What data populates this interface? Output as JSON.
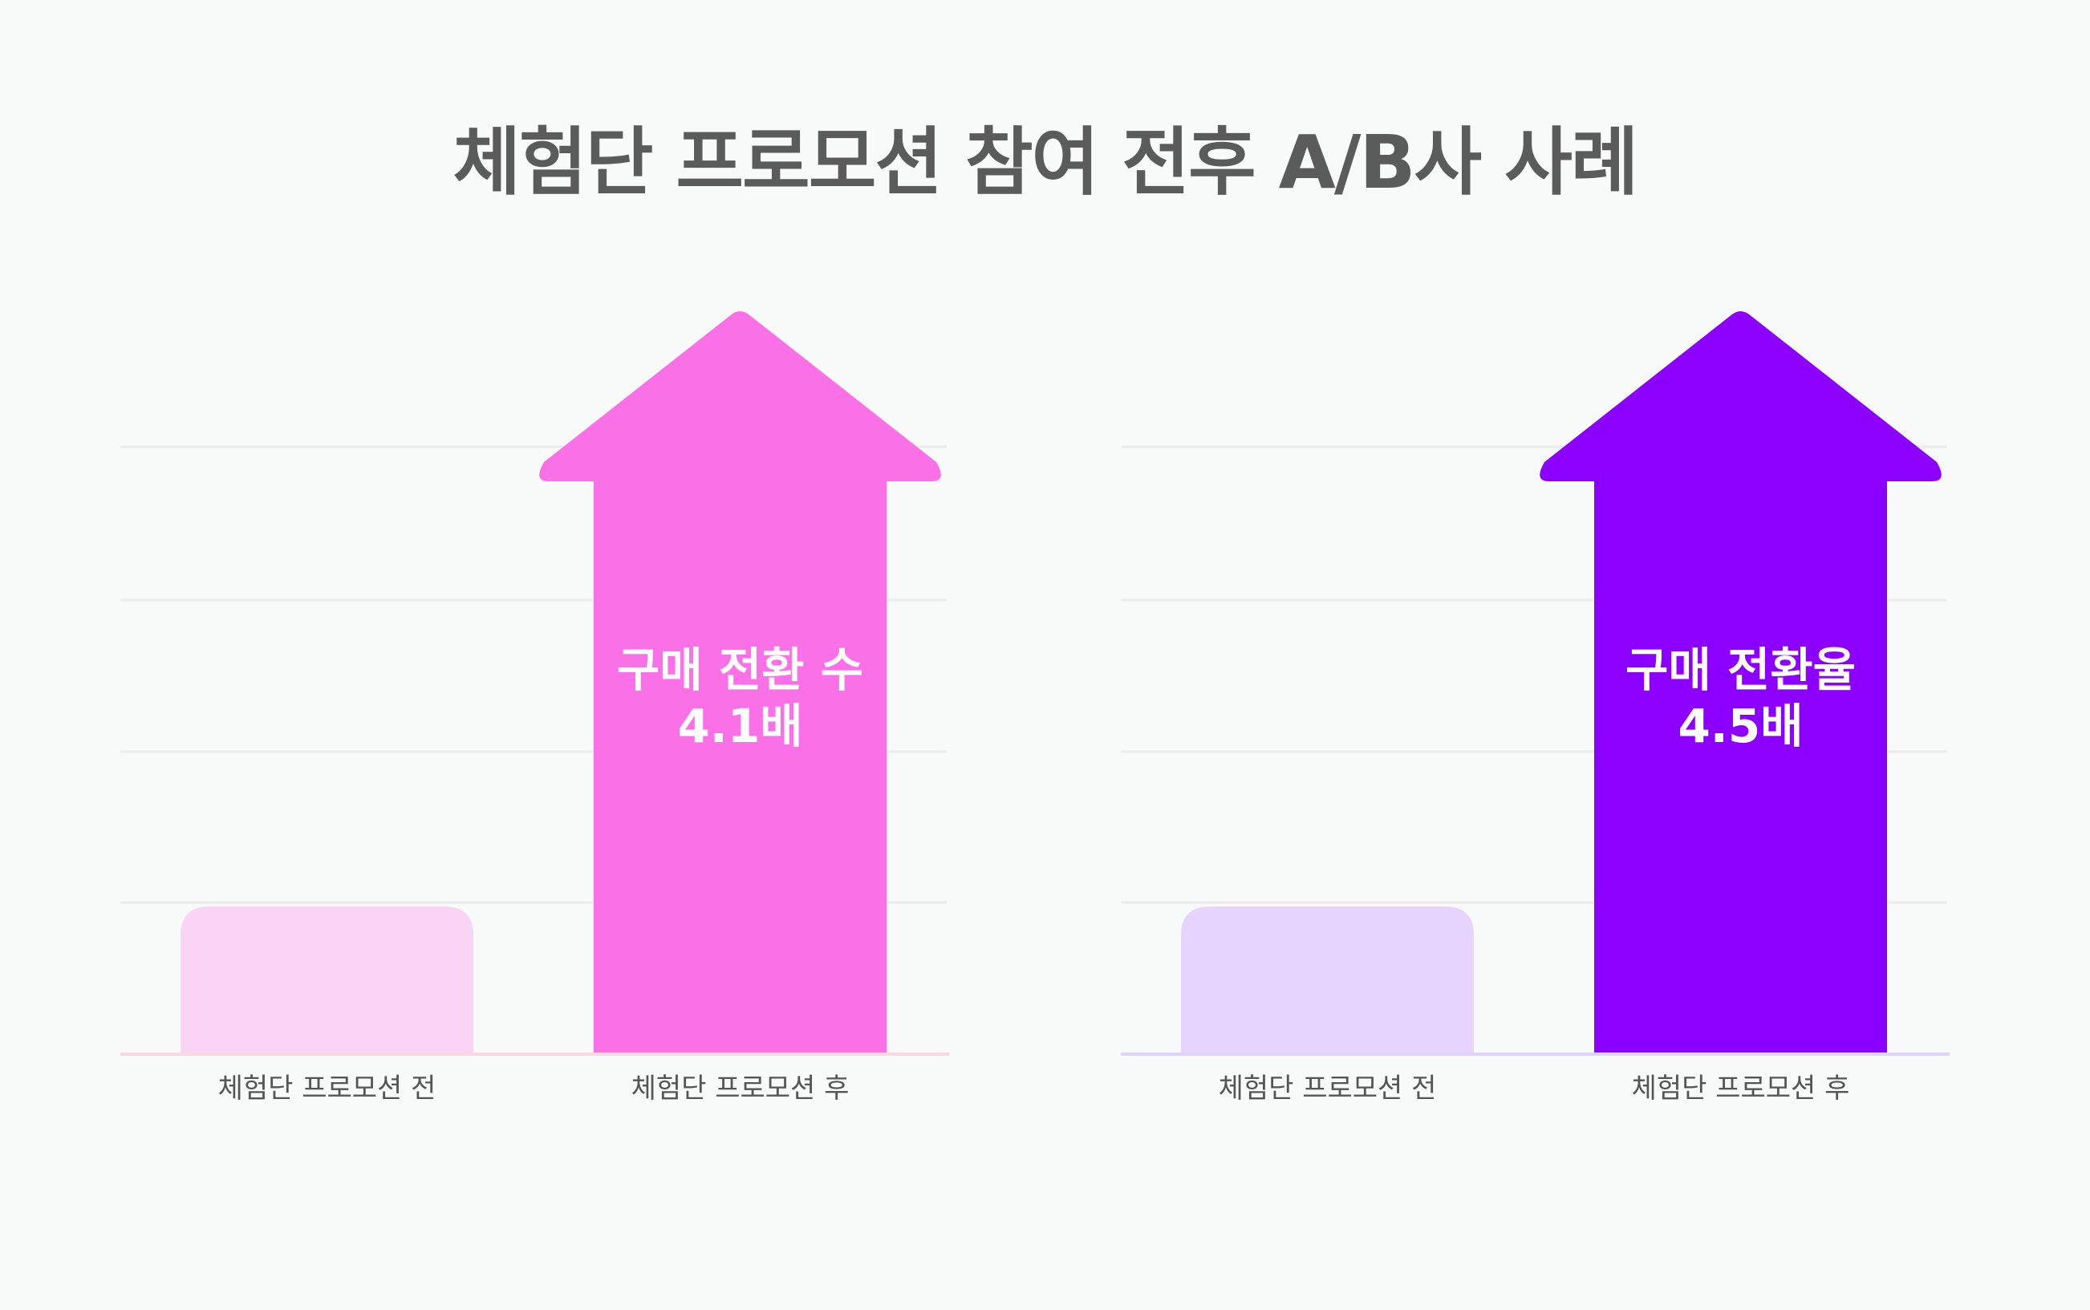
{
  "title": "체험단 프로모션 참여 전후 A/B사 사례",
  "chart_data": [
    {
      "type": "bar",
      "categories": [
        "체험단 프로모션 전",
        "체험단 프로모션 후"
      ],
      "values": [
        1,
        4.1
      ],
      "annotation": [
        "구매 전환 수",
        "4.1배"
      ],
      "ylim": [
        0,
        4.1
      ],
      "grid": true,
      "colors": {
        "before": "#fad4f4",
        "after": "#fa70e6",
        "baseline": "#fbd7e6",
        "grid": "#ececec"
      }
    },
    {
      "type": "bar",
      "categories": [
        "체험단 프로모션 전",
        "체험단 프로모션 후"
      ],
      "values": [
        1,
        4.5
      ],
      "annotation": [
        "구매 전환율",
        "4.5배"
      ],
      "ylim": [
        0,
        4.5
      ],
      "grid": true,
      "colors": {
        "before": "#e6d3fe",
        "after": "#8c00ff",
        "baseline": "#e0d3fb",
        "grid": "#ececec"
      }
    }
  ]
}
